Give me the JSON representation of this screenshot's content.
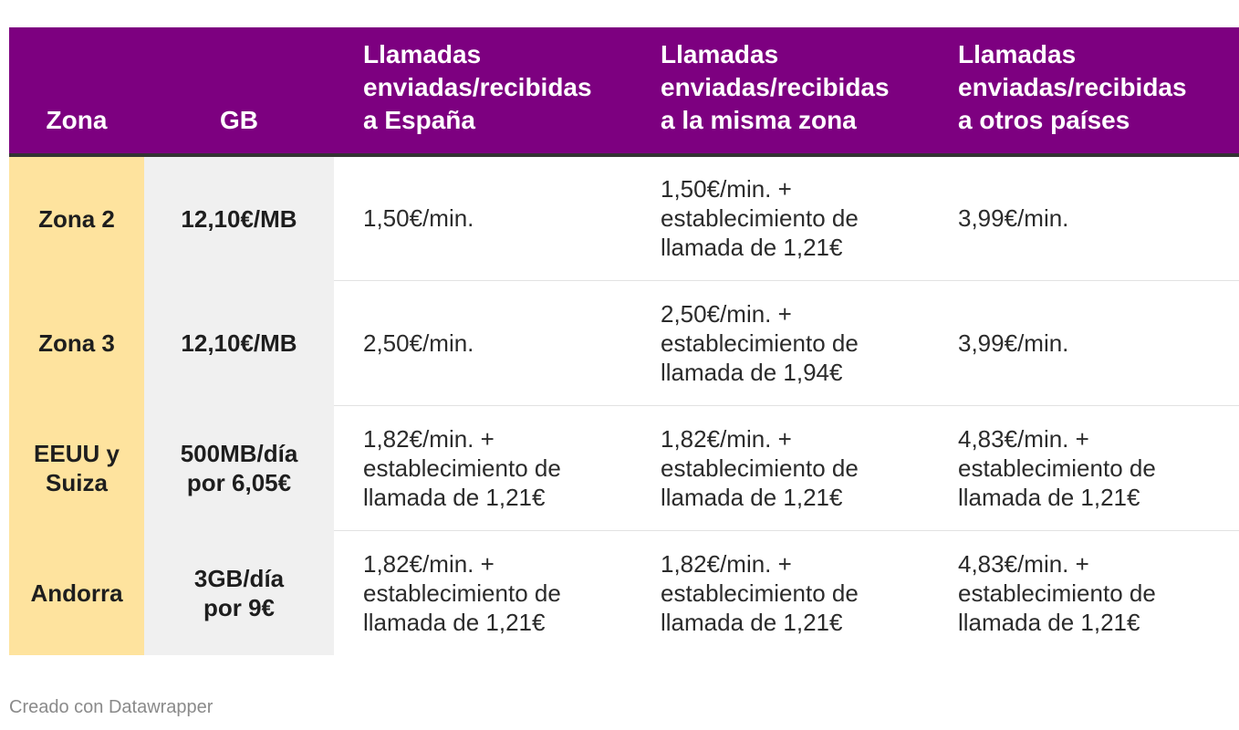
{
  "chart_data": {
    "type": "table",
    "columns": [
      "Zona",
      "GB",
      "Llamadas\nenviadas/recibidas\na España",
      "Llamadas\nenviadas/recibidas\na la misma zona",
      "Llamadas\nenviadas/recibidas\na otros países"
    ],
    "rows": [
      {
        "zona": "Zona 2",
        "gb": "12,10€/MB",
        "espana": " 1,50€/min.",
        "misma_zona": "1,50€/min. +\nestablecimiento de\nllamada de 1,21€",
        "otros_paises": "3,99€/min."
      },
      {
        "zona": "Zona 3",
        "gb": "12,10€/MB",
        "espana": "2,50€/min.",
        "misma_zona": "2,50€/min. +\nestablecimiento de\nllamada de 1,94€",
        "otros_paises": "3,99€/min."
      },
      {
        "zona": "EEUU y\nSuiza",
        "gb": "500MB/día\npor 6,05€",
        "espana": "1,82€/min. +\nestablecimiento de\nllamada de 1,21€",
        "misma_zona": "1,82€/min. +\nestablecimiento de\nllamada de 1,21€",
        "otros_paises": "4,83€/min. +\nestablecimiento de\nllamada de 1,21€"
      },
      {
        "zona": "Andorra",
        "gb": "3GB/día\npor 9€",
        "espana": "1,82€/min. +\nestablecimiento de\nllamada de 1,21€",
        "misma_zona": "1,82€/min. +\nestablecimiento de\nllamada de 1,21€",
        "otros_paises": "4,83€/min. +\nestablecimiento de\nllamada de 1,21€"
      }
    ]
  },
  "footer": "Creado con Datawrapper",
  "colors": {
    "header_bg": "#7d0080",
    "zona_bg": "#fee39e",
    "gb_bg": "#f0f0f0"
  }
}
